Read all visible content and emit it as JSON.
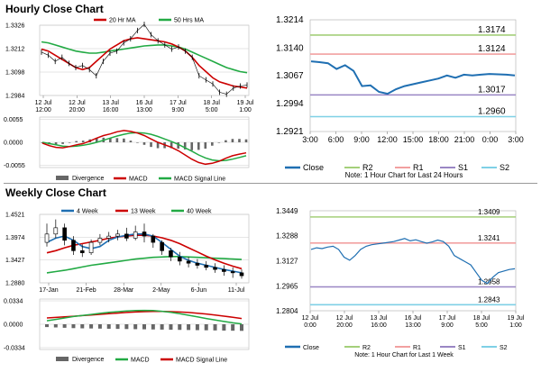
{
  "hourly": {
    "title": "Hourly Close Chart",
    "main": {
      "legend": [
        "20 Hr MA",
        "50 Hrs MA"
      ],
      "colors": {
        "price": "#000000",
        "ma20": "#cc0000",
        "ma50": "#22aa44"
      },
      "y_ticks": [
        "1.3326",
        "1.3212",
        "1.3098",
        "1.2984"
      ],
      "x_ticks": [
        "12 Jul\n12:00",
        "12 Jul\n20:00",
        "13 Jul\n16:00",
        "16 Jul\n13:00",
        "17 Jul\n9:00",
        "18 Jul\n5:00",
        "19 Jul\n1:00"
      ],
      "price": [
        1.3195,
        1.318,
        1.315,
        1.317,
        1.314,
        1.312,
        1.313,
        1.311,
        1.308,
        1.315,
        1.319,
        1.32,
        1.324,
        1.326,
        1.33,
        1.333,
        1.328,
        1.325,
        1.323,
        1.321,
        1.322,
        1.32,
        1.317,
        1.308,
        1.306,
        1.304,
        1.3,
        1.299,
        1.302,
        1.303,
        1.3035
      ],
      "ma20": [
        1.321,
        1.32,
        1.318,
        1.316,
        1.314,
        1.312,
        1.311,
        1.312,
        1.315,
        1.318,
        1.321,
        1.323,
        1.325,
        1.326,
        1.3265,
        1.326,
        1.3255,
        1.325,
        1.3245,
        1.3235,
        1.322,
        1.32,
        1.317,
        1.313,
        1.31,
        1.307,
        1.305,
        1.304,
        1.303,
        1.3025,
        1.302
      ],
      "ma50": [
        1.3245,
        1.324,
        1.323,
        1.322,
        1.321,
        1.32,
        1.3195,
        1.319,
        1.319,
        1.3195,
        1.32,
        1.3205,
        1.321,
        1.3215,
        1.322,
        1.3225,
        1.3228,
        1.323,
        1.323,
        1.3225,
        1.322,
        1.321,
        1.3195,
        1.318,
        1.3165,
        1.315,
        1.3135,
        1.312,
        1.311,
        1.31,
        1.3095
      ]
    },
    "macd": {
      "y_ticks": [
        "0.0055",
        "0.0000",
        "-0.0055"
      ],
      "legend": [
        "Divergence",
        "MACD",
        "MACD Signal Line"
      ],
      "colors": {
        "divergence": "#666666",
        "macd": "#cc0000",
        "signal": "#22aa44"
      },
      "macd": [
        -0.0002,
        -0.0008,
        -0.0012,
        -0.0013,
        -0.001,
        -0.0006,
        -0.0003,
        0.0003,
        0.001,
        0.0016,
        0.002,
        0.0025,
        0.0028,
        0.0026,
        0.0022,
        0.0016,
        0.0008,
        0.0,
        -0.0006,
        -0.0012,
        -0.002,
        -0.003,
        -0.004,
        -0.0048,
        -0.0052,
        -0.005,
        -0.0045,
        -0.0038,
        -0.0032,
        -0.0028,
        -0.0025
      ],
      "signal": [
        0.0,
        -0.0003,
        -0.0006,
        -0.0009,
        -0.001,
        -0.0009,
        -0.0007,
        -0.0004,
        0.0,
        0.0005,
        0.001,
        0.0015,
        0.0019,
        0.0022,
        0.0023,
        0.0022,
        0.0019,
        0.0014,
        0.0008,
        0.0002,
        -0.0005,
        -0.0013,
        -0.0021,
        -0.003,
        -0.0037,
        -0.0042,
        -0.0044,
        -0.0043,
        -0.004,
        -0.0036,
        -0.0032
      ]
    },
    "right": {
      "y_ticks": [
        "1.3214",
        "1.3140",
        "1.3067",
        "1.2994",
        "1.2921"
      ],
      "x_ticks": [
        "3:00",
        "6:00",
        "9:00",
        "12:00",
        "15:00",
        "18:00",
        "21:00",
        "0:00",
        "3:00"
      ],
      "levels": {
        "R2": "1.3174",
        "R1": "1.3124",
        "S1": "1.3017",
        "S2": "1.2960"
      },
      "level_values": [
        1.3174,
        1.3124,
        1.3017,
        1.296
      ],
      "close": [
        1.3105,
        1.3103,
        1.31,
        1.3085,
        1.3095,
        1.308,
        1.304,
        1.3042,
        1.3025,
        1.302,
        1.3032,
        1.304,
        1.3045,
        1.305,
        1.3055,
        1.306,
        1.3068,
        1.3062,
        1.307,
        1.3068,
        1.307,
        1.3072,
        1.3071,
        1.307,
        1.3068
      ],
      "legend": [
        "Close",
        "R2",
        "R1",
        "S1",
        "S2"
      ],
      "colors": {
        "close": "#1f6fb2",
        "R2": "#a4cf7a",
        "R1": "#f2a0a0",
        "S1": "#9a86c4",
        "S2": "#7fd0e6"
      },
      "note": "Note: 1 Hour Chart for Last 24 Hours"
    }
  },
  "weekly": {
    "title": "Weekly Close Chart",
    "main": {
      "legend": [
        "4 Week",
        "13 Week",
        "40 Week"
      ],
      "colors": {
        "ma4": "#1f6fb2",
        "ma13": "#cc0000",
        "ma40": "#22aa44",
        "candle": "#000000"
      },
      "y_ticks": [
        "1.4521",
        "1.3974",
        "1.3427",
        "1.2880"
      ],
      "x_ticks": [
        "17-Jan",
        "21-Feb",
        "28-Mar",
        "2-May",
        "6-Jun",
        "11-Jul"
      ],
      "candles": [
        {
          "o": 1.385,
          "c": 1.405,
          "h": 1.43,
          "l": 1.375
        },
        {
          "o": 1.405,
          "c": 1.42,
          "h": 1.44,
          "l": 1.395
        },
        {
          "o": 1.42,
          "c": 1.39,
          "h": 1.43,
          "l": 1.378
        },
        {
          "o": 1.39,
          "c": 1.365,
          "h": 1.4,
          "l": 1.355
        },
        {
          "o": 1.365,
          "c": 1.36,
          "h": 1.38,
          "l": 1.35
        },
        {
          "o": 1.36,
          "c": 1.385,
          "h": 1.392,
          "l": 1.355
        },
        {
          "o": 1.385,
          "c": 1.395,
          "h": 1.405,
          "l": 1.378
        },
        {
          "o": 1.395,
          "c": 1.4,
          "h": 1.41,
          "l": 1.385
        },
        {
          "o": 1.4,
          "c": 1.405,
          "h": 1.415,
          "l": 1.39
        },
        {
          "o": 1.405,
          "c": 1.395,
          "h": 1.42,
          "l": 1.388
        },
        {
          "o": 1.395,
          "c": 1.41,
          "h": 1.425,
          "l": 1.39
        },
        {
          "o": 1.41,
          "c": 1.4,
          "h": 1.43,
          "l": 1.385
        },
        {
          "o": 1.4,
          "c": 1.385,
          "h": 1.405,
          "l": 1.372
        },
        {
          "o": 1.385,
          "c": 1.365,
          "h": 1.39,
          "l": 1.355
        },
        {
          "o": 1.365,
          "c": 1.35,
          "h": 1.372,
          "l": 1.34
        },
        {
          "o": 1.35,
          "c": 1.34,
          "h": 1.362,
          "l": 1.33
        },
        {
          "o": 1.34,
          "c": 1.335,
          "h": 1.35,
          "l": 1.325
        },
        {
          "o": 1.335,
          "c": 1.33,
          "h": 1.345,
          "l": 1.322
        },
        {
          "o": 1.33,
          "c": 1.325,
          "h": 1.34,
          "l": 1.318
        },
        {
          "o": 1.325,
          "c": 1.32,
          "h": 1.335,
          "l": 1.312
        },
        {
          "o": 1.32,
          "c": 1.315,
          "h": 1.33,
          "l": 1.305
        },
        {
          "o": 1.315,
          "c": 1.312,
          "h": 1.325,
          "l": 1.3
        },
        {
          "o": 1.312,
          "c": 1.305,
          "h": 1.32,
          "l": 1.298
        }
      ],
      "ma4": [
        1.385,
        1.395,
        1.4,
        1.39,
        1.375,
        1.37,
        1.375,
        1.39,
        1.398,
        1.402,
        1.405,
        1.405,
        1.4,
        1.385,
        1.368,
        1.352,
        1.342,
        1.335,
        1.33,
        1.325,
        1.32,
        1.316,
        1.312
      ],
      "ma13": [
        1.36,
        1.365,
        1.372,
        1.378,
        1.382,
        1.386,
        1.39,
        1.395,
        1.398,
        1.4,
        1.402,
        1.402,
        1.4,
        1.396,
        1.39,
        1.382,
        1.372,
        1.362,
        1.352,
        1.343,
        1.335,
        1.328,
        1.322
      ],
      "ma40": [
        1.312,
        1.315,
        1.318,
        1.322,
        1.326,
        1.33,
        1.333,
        1.336,
        1.339,
        1.342,
        1.345,
        1.347,
        1.349,
        1.35,
        1.351,
        1.351,
        1.35,
        1.349,
        1.348,
        1.347,
        1.346,
        1.345,
        1.344
      ]
    },
    "macd": {
      "y_ticks": [
        "0.0334",
        "0.0000",
        "-0.0334"
      ],
      "legend": [
        "Divergence",
        "MACD",
        "MACD Signal Line"
      ],
      "colors": {
        "divergence": "#666666",
        "macd": "#22aa44",
        "signal": "#cc0000"
      },
      "macd": [
        0.005,
        0.007,
        0.009,
        0.011,
        0.0125,
        0.014,
        0.0155,
        0.017,
        0.018,
        0.019,
        0.0195,
        0.0198,
        0.0195,
        0.0185,
        0.017,
        0.015,
        0.0128,
        0.0105,
        0.0082,
        0.006,
        0.004,
        0.002,
        0.0005
      ],
      "signal": [
        0.009,
        0.0098,
        0.0106,
        0.0115,
        0.0124,
        0.0133,
        0.0142,
        0.0152,
        0.016,
        0.0168,
        0.0175,
        0.018,
        0.0182,
        0.0182,
        0.018,
        0.0175,
        0.0168,
        0.0158,
        0.0146,
        0.0132,
        0.0116,
        0.01,
        0.0082
      ],
      "divergence": [
        -0.004,
        -0.0045,
        -0.005,
        -0.0055,
        -0.0058,
        -0.006,
        -0.0062,
        -0.0064,
        -0.0066,
        -0.0068,
        -0.007,
        -0.0072,
        -0.0074,
        -0.0076,
        -0.0078,
        -0.008,
        -0.0082,
        -0.0084,
        -0.0086,
        -0.0088,
        -0.009,
        -0.0092,
        -0.0094
      ]
    },
    "right": {
      "y_ticks": [
        "1.3449",
        "1.3288",
        "1.3127",
        "1.2965",
        "1.2804"
      ],
      "x_ticks": [
        "12 Jul\n0:00",
        "12 Jul\n20:00",
        "13 Jul\n16:00",
        "16 Jul\n13:00",
        "17 Jul\n9:00",
        "18 Jul\n5:00",
        "19 Jul\n1:00"
      ],
      "levels": {
        "R2": "1.3409",
        "R1": "1.3241",
        "S1": "1.2958",
        "S2": "1.2843"
      },
      "level_values": [
        1.3409,
        1.3241,
        1.2958,
        1.2843
      ],
      "close": [
        1.32,
        1.321,
        1.3205,
        1.3215,
        1.322,
        1.32,
        1.315,
        1.313,
        1.316,
        1.32,
        1.322,
        1.323,
        1.3235,
        1.324,
        1.3245,
        1.325,
        1.326,
        1.327,
        1.3255,
        1.3262,
        1.325,
        1.324,
        1.3248,
        1.326,
        1.325,
        1.322,
        1.316,
        1.314,
        1.312,
        1.31,
        1.305,
        1.3,
        1.298,
        1.302,
        1.305,
        1.306,
        1.307,
        1.3075
      ],
      "legend": [
        "Close",
        "R2",
        "R1",
        "S1",
        "S2"
      ],
      "colors": {
        "close": "#1f6fb2",
        "R2": "#a4cf7a",
        "R1": "#f2a0a0",
        "S1": "#9a86c4",
        "S2": "#7fd0e6"
      },
      "note": "Note: 1 Hour Chart for Last 1 Week"
    }
  },
  "chart_data": [
    {
      "type": "line",
      "title": "Hourly Close Chart",
      "series": [
        {
          "name": "20 Hr MA"
        },
        {
          "name": "50 Hrs MA"
        }
      ]
    },
    {
      "type": "line",
      "title": "",
      "series": [
        {
          "name": "Close"
        },
        {
          "name": "R2",
          "values": [
            1.3174
          ]
        },
        {
          "name": "R1",
          "values": [
            1.3124
          ]
        },
        {
          "name": "S1",
          "values": [
            1.3017
          ]
        },
        {
          "name": "S2",
          "values": [
            1.296
          ]
        }
      ]
    },
    {
      "type": "line",
      "title": "Weekly Close Chart",
      "series": [
        {
          "name": "4 Week"
        },
        {
          "name": "13 Week"
        },
        {
          "name": "40 Week"
        }
      ]
    },
    {
      "type": "line",
      "title": "",
      "series": [
        {
          "name": "Close"
        },
        {
          "name": "R2",
          "values": [
            1.3409
          ]
        },
        {
          "name": "R1",
          "values": [
            1.3241
          ]
        },
        {
          "name": "S1",
          "values": [
            1.2958
          ]
        },
        {
          "name": "S2",
          "values": [
            1.2843
          ]
        }
      ]
    }
  ]
}
